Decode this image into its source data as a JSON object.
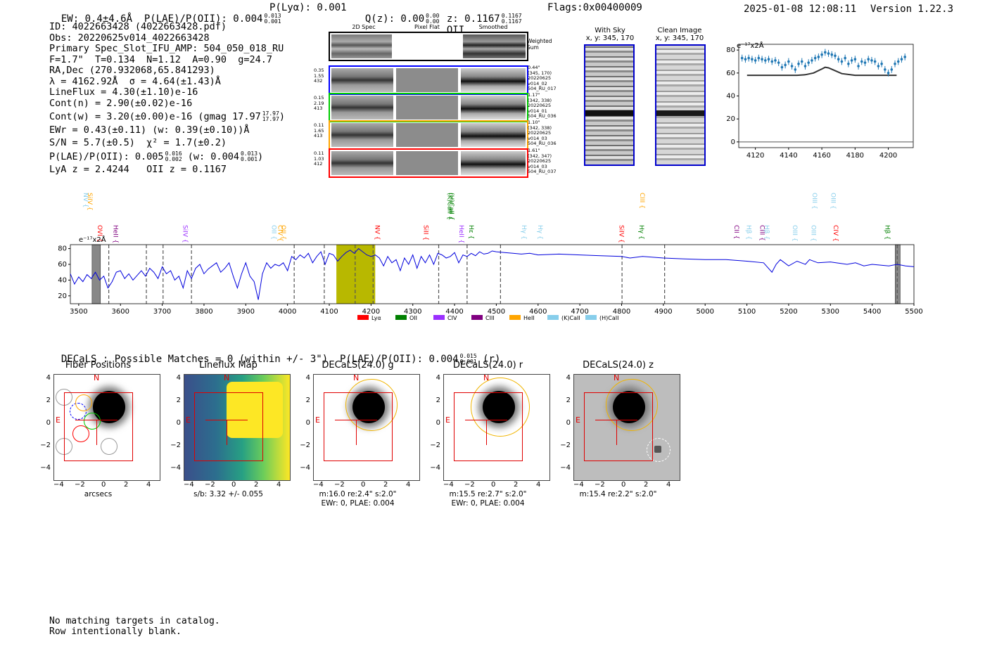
{
  "header": {
    "left": "EW: 0.4±4.6Å  P(LAE)/P(OII): 0.004",
    "plae_sup": "0.013",
    "plae_sub": "0.001",
    "plya": "P(Lyα): 0.001",
    "qz": "Q(z): 0.00",
    "qz_sup": "0.00",
    "qz_sub": "0.00",
    "z": "z: 0.1167",
    "z_sup": "0.1167",
    "z_sub": "0.1167",
    "z_line": "OII",
    "flags": "Flags:0x00400009",
    "datetime": "2025-01-08 12:08:11",
    "version": "Version 1.22.3"
  },
  "info": {
    "id": "ID: 4022663428 (4022663428.pdf)",
    "obs": "Obs: 20220625v014_4022663428",
    "primary": "Primary Spec_Slot_IFU_AMP: 504_050_018_RU",
    "fit": "F=1.7\"  T=0.134  N=1.12  A=0.90  g=24.7",
    "radec": "RA,Dec (270.932068,65.841293)",
    "lambda": "λ = 4162.92Å  σ = 4.64(±1.43)Å",
    "lineflux": "LineFlux = 4.30(±1.10)e-16",
    "contn": "Cont(n) = 2.90(±0.02)e-16",
    "contw": "Cont(w) = 3.20(±0.00)e-16 (gmag 17.97",
    "gmag_sup": "17.97",
    "gmag_sub": "17.97",
    "ewr": "EWr = 0.43(±0.11) (w: 0.39(±0.10))Å",
    "sn": "S/N = 5.7(±0.5)  χ² = 1.7(±0.2)",
    "plae2": "P(LAE)/P(OII): 0.005",
    "plae2_sup": "0.016",
    "plae2_sub": "0.002",
    "plae2_w": "(w: 0.004",
    "plae2_w_sup": "0.013",
    "plae2_w_sub": "0.001",
    "lyaz": "LyA z = 2.4244   OII z = 0.1167"
  },
  "spec2d": {
    "col_titles": [
      "2D Spec",
      "Pixel Flat",
      "Smoothed"
    ],
    "weighted_label": "Weighted Sum",
    "fibers": [
      {
        "color": "#0000ff",
        "left": [
          "0.35",
          "1.55",
          "432"
        ],
        "right": [
          "0.44\"",
          "(345, 170)",
          "20220625",
          "v014_02",
          "504_RU_017"
        ]
      },
      {
        "color": "#00cc00",
        "left": [
          "0.15",
          "2.19",
          "413"
        ],
        "right": [
          "1.17\"",
          "(342, 338)",
          "20220625",
          "v014_01",
          "504_RU_036"
        ]
      },
      {
        "color": "#ffa500",
        "left": [
          "0.11",
          "1.65",
          "413"
        ],
        "right": [
          "1.10\"",
          "(342, 338)",
          "20220625",
          "v014_03",
          "504_RU_036"
        ]
      },
      {
        "color": "#ff0000",
        "left": [
          "0.11",
          "1.03",
          "412"
        ],
        "right": [
          "1.61\"",
          "(342, 347)",
          "20220625",
          "v014_03",
          "504_RU_037"
        ]
      }
    ]
  },
  "cutouts": {
    "withsky_title": "With Sky",
    "withsky_xy": "x, y: 345, 170",
    "clean_title": "Clean Image",
    "clean_xy": "x, y: 345, 170"
  },
  "zoom_chart": {
    "unit": "e⁻¹⁷x2Å"
  },
  "full_spectrum": {
    "unit": "e⁻¹⁷x2Å",
    "legend": [
      {
        "label": "Lyα",
        "color": "#ff0000"
      },
      {
        "label": "OII",
        "color": "#008000"
      },
      {
        "label": "CIV",
        "color": "#9b30ff"
      },
      {
        "label": "CIII",
        "color": "#800080"
      },
      {
        "label": "HeII",
        "color": "#ffa500"
      },
      {
        "label": "(K)CaII",
        "color": "#87ceeb"
      },
      {
        "label": "(H)CaII",
        "color": "#87ceeb"
      }
    ],
    "top_labels": [
      {
        "x": 3512,
        "label": "NV",
        "color": "#87ceeb",
        "row": 0
      },
      {
        "x": 3522,
        "label": "SiIV",
        "color": "#ffa500",
        "row": 0
      },
      {
        "x": 4384,
        "label": "(K)CaII",
        "color": "#008000",
        "row": 0
      },
      {
        "x": 4388,
        "label": "(H)CaII",
        "color": "#008000",
        "row": 0
      },
      {
        "x": 4845,
        "label": "CIII",
        "color": "#ffa500",
        "row": 0
      },
      {
        "x": 5257,
        "label": "OIII",
        "color": "#87ceeb",
        "row": 0
      },
      {
        "x": 5302,
        "label": "OIII",
        "color": "#87ceeb",
        "row": 0
      },
      {
        "x": 3546,
        "label": "OVI",
        "color": "#ff0000",
        "row": 1
      },
      {
        "x": 3584,
        "label": "HeII",
        "color": "#800080",
        "row": 1
      },
      {
        "x": 3750,
        "label": "SiIV",
        "color": "#9b30ff",
        "row": 1
      },
      {
        "x": 3963,
        "label": "OII",
        "color": "#87ceeb",
        "row": 1
      },
      {
        "x": 3978,
        "label": "CIV",
        "color": "#ffa500",
        "row": 1
      },
      {
        "x": 3985,
        "label": "OII",
        "color": "#ffa500",
        "row": 1
      },
      {
        "x": 4210,
        "label": "NV",
        "color": "#ff0000",
        "row": 1
      },
      {
        "x": 4327,
        "label": "SiII",
        "color": "#ff0000",
        "row": 1
      },
      {
        "x": 4412,
        "label": "HeII",
        "color": "#9b30ff",
        "row": 1
      },
      {
        "x": 4435,
        "label": "Hε",
        "color": "#008000",
        "row": 1
      },
      {
        "x": 4562,
        "label": "Hγ",
        "color": "#87ceeb",
        "row": 1
      },
      {
        "x": 4600,
        "label": "Hγ",
        "color": "#87ceeb",
        "row": 1
      },
      {
        "x": 4795,
        "label": "SiIV",
        "color": "#ff0000",
        "row": 1
      },
      {
        "x": 4843,
        "label": "Hγ",
        "color": "#008000",
        "row": 1
      },
      {
        "x": 5070,
        "label": "CII",
        "color": "#800080",
        "row": 1
      },
      {
        "x": 5100,
        "label": "Hβ",
        "color": "#87ceeb",
        "row": 1
      },
      {
        "x": 5132,
        "label": "CIII",
        "color": "#800080",
        "row": 1
      },
      {
        "x": 5143,
        "label": "Hβ",
        "color": "#87ceeb",
        "row": 1
      },
      {
        "x": 5210,
        "label": "OIII",
        "color": "#87ceeb",
        "row": 1
      },
      {
        "x": 5255,
        "label": "OIII",
        "color": "#87ceeb",
        "row": 1
      },
      {
        "x": 5308,
        "label": "CIV",
        "color": "#ff0000",
        "row": 1
      },
      {
        "x": 5432,
        "label": "Hβ",
        "color": "#008000",
        "row": 1
      }
    ]
  },
  "decals": {
    "header": "DECaLS : Possible Matches = 0 (within +/- 3\")  P(LAE)/P(OII): 0.004",
    "header_sup": "0.015",
    "header_sub": "0.001",
    "header_tail": "(r)",
    "panels": [
      {
        "title": "Fiber Positions",
        "cap1": "arcsecs",
        "cap2": ""
      },
      {
        "title": "Lineflux Map",
        "cap1": "s/b: 3.32 +/- 0.055",
        "cap2": ""
      },
      {
        "title": "DECaLS(24.0) g",
        "cap1": "m:16.0  re:2.4\"  s:2.0\"",
        "cap2": "EWr: 0, PLAE: 0.004"
      },
      {
        "title": "DECaLS(24.0) r",
        "cap1": "m:15.5  re:2.7\"  s:2.0\"",
        "cap2": "EWr: 0, PLAE: 0.004"
      },
      {
        "title": "DECaLS(24.0) z",
        "cap1": "m:15.4  re:2.2\"  s:2.0\"",
        "cap2": ""
      }
    ],
    "n_label": "N",
    "e_label": "E"
  },
  "footer": {
    "line1": "No matching targets in catalog.",
    "line2": "Row intentionally blank."
  },
  "chart_data": [
    {
      "type": "scatter",
      "title": "",
      "xlabel": "",
      "ylabel": "e⁻¹⁷x2Å",
      "xlim": [
        4110,
        4215
      ],
      "ylim": [
        -5,
        85
      ],
      "x_ticks": [
        4120,
        4140,
        4160,
        4180,
        4200
      ],
      "y_ticks": [
        0,
        20,
        40,
        60,
        80
      ],
      "series": [
        {
          "x": [
            4112,
            4114,
            4116,
            4118,
            4120,
            4122,
            4124,
            4126,
            4128,
            4130,
            4132,
            4134,
            4136,
            4138,
            4140,
            4142,
            4144,
            4146,
            4148,
            4150,
            4152,
            4154,
            4156,
            4158,
            4160,
            4162,
            4164,
            4166,
            4168,
            4170,
            4172,
            4174,
            4176,
            4178,
            4180,
            4182,
            4184,
            4186,
            4188,
            4190,
            4192,
            4194,
            4196,
            4198,
            4200,
            4202,
            4204,
            4206,
            4208,
            4210
          ],
          "y": [
            73,
            72,
            73,
            72,
            71,
            73,
            72,
            71,
            72,
            70,
            71,
            69,
            65,
            67,
            70,
            66,
            63,
            68,
            70,
            66,
            69,
            71,
            73,
            74,
            76,
            78,
            77,
            76,
            75,
            72,
            70,
            73,
            68,
            71,
            72,
            66,
            70,
            69,
            72,
            71,
            70,
            66,
            68,
            63,
            60,
            63,
            68,
            70,
            72,
            74
          ]
        },
        {
          "x": [
            4115,
            4125,
            4135,
            4145,
            4150,
            4155,
            4160,
            4162,
            4164,
            4168,
            4172,
            4180,
            4190,
            4200,
            4205
          ],
          "y": [
            58,
            58,
            58,
            58,
            58.5,
            60,
            63.5,
            65,
            64.5,
            62,
            59.5,
            58,
            58,
            58,
            58
          ]
        }
      ]
    },
    {
      "type": "line",
      "title": "",
      "xlabel": "",
      "ylabel": "e⁻¹⁷x2Å",
      "xlim": [
        3480,
        5500
      ],
      "ylim": [
        10,
        85
      ],
      "x_ticks": [
        3500,
        3600,
        3700,
        3800,
        3900,
        4000,
        4100,
        4200,
        4300,
        4400,
        4500,
        4600,
        4700,
        4800,
        4900,
        5000,
        5100,
        5200,
        5300,
        5400,
        5500
      ],
      "y_ticks": [
        20,
        40,
        60,
        80
      ],
      "highlight_band": [
        4117,
        4210
      ],
      "masked_bands": [
        [
          3532,
          3552
        ],
        [
          5455,
          5467
        ]
      ],
      "dashed_lines": [
        3572,
        3662,
        3702,
        3770,
        4016,
        4088,
        4162,
        4205,
        4362,
        4430,
        4510,
        4801,
        4903,
        5460
      ],
      "series": [
        {
          "x": [
            3480,
            3490,
            3500,
            3510,
            3520,
            3530,
            3540,
            3550,
            3560,
            3570,
            3580,
            3590,
            3600,
            3610,
            3620,
            3630,
            3640,
            3650,
            3660,
            3670,
            3680,
            3690,
            3700,
            3710,
            3720,
            3730,
            3740,
            3750,
            3760,
            3770,
            3780,
            3790,
            3800,
            3810,
            3820,
            3830,
            3840,
            3850,
            3860,
            3870,
            3880,
            3890,
            3900,
            3910,
            3920,
            3930,
            3940,
            3950,
            3960,
            3970,
            3980,
            3990,
            4000,
            4010,
            4020,
            4030,
            4040,
            4050,
            4060,
            4070,
            4080,
            4090,
            4100,
            4110,
            4120,
            4130,
            4140,
            4150,
            4160,
            4170,
            4180,
            4190,
            4200,
            4210,
            4220,
            4230,
            4240,
            4250,
            4260,
            4270,
            4280,
            4290,
            4300,
            4310,
            4320,
            4330,
            4340,
            4350,
            4360,
            4370,
            4380,
            4390,
            4400,
            4410,
            4420,
            4430,
            4440,
            4450,
            4460,
            4470,
            4480,
            4490,
            4500,
            4520,
            4540,
            4560,
            4580,
            4600,
            4650,
            4700,
            4750,
            4800,
            4820,
            4850,
            4900,
            4950,
            5000,
            5050,
            5100,
            5140,
            5160,
            5170,
            5180,
            5200,
            5220,
            5240,
            5250,
            5270,
            5300,
            5340,
            5360,
            5380,
            5400,
            5420,
            5440,
            5460,
            5480,
            5500
          ],
          "y": [
            48,
            35,
            44,
            38,
            47,
            42,
            50,
            40,
            45,
            30,
            38,
            50,
            52,
            42,
            48,
            40,
            46,
            52,
            45,
            55,
            50,
            42,
            57,
            48,
            52,
            40,
            45,
            30,
            52,
            42,
            55,
            60,
            48,
            54,
            58,
            62,
            50,
            55,
            62,
            45,
            30,
            48,
            62,
            45,
            38,
            15,
            48,
            62,
            55,
            60,
            58,
            62,
            52,
            70,
            66,
            72,
            68,
            74,
            62,
            70,
            76,
            60,
            74,
            72,
            64,
            70,
            75,
            78,
            74,
            80,
            76,
            72,
            70,
            72,
            68,
            58,
            70,
            62,
            66,
            52,
            68,
            60,
            72,
            55,
            70,
            62,
            72,
            60,
            74,
            72,
            68,
            70,
            75,
            62,
            72,
            70,
            74,
            71,
            76,
            73,
            74,
            77,
            76,
            75,
            74,
            73,
            74,
            72,
            73,
            72,
            71,
            70,
            68,
            70,
            68,
            67,
            66,
            66,
            64,
            62,
            50,
            60,
            66,
            58,
            64,
            60,
            66,
            62,
            63,
            60,
            62,
            58,
            60,
            59,
            58,
            60,
            58,
            57
          ]
        }
      ]
    }
  ]
}
